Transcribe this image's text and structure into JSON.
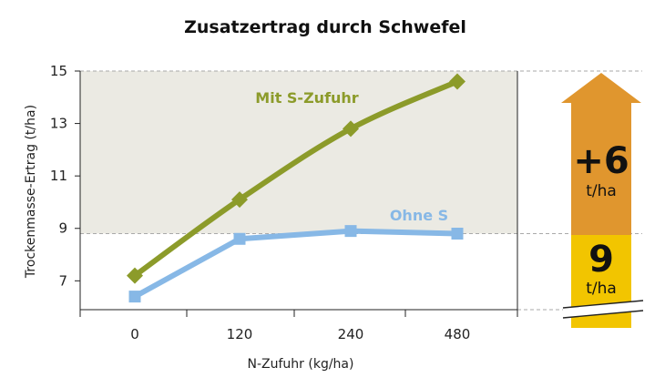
{
  "chart_data": {
    "type": "line",
    "title": "Zusatzertrag durch Schwefel",
    "xlabel": "N-Zufuhr (kg/ha)",
    "ylabel": "Trockenmasse-Ertrag (t/ha)",
    "categories": [
      "0",
      "120",
      "240",
      "480"
    ],
    "y_ticks": [
      7,
      9,
      11,
      13,
      15
    ],
    "ylim": [
      5.9,
      15
    ],
    "grid": false,
    "series": [
      {
        "name": "Mit S-Zufuhr",
        "values": [
          7.2,
          10.1,
          12.8,
          14.6
        ],
        "color": "#8c9b2a",
        "marker": "diamond"
      },
      {
        "name": "Ohne S",
        "values": [
          6.4,
          8.6,
          8.9,
          8.8
        ],
        "color": "#87b8e6",
        "marker": "square"
      }
    ],
    "shaded_band": {
      "from": 8.8,
      "to": 15,
      "color": "#ebeae3"
    },
    "side_arrow": {
      "top_value": "+6",
      "top_unit": "t/ha",
      "top_color": "#e0962e",
      "bottom_value": "9",
      "bottom_unit": "t/ha",
      "bottom_color": "#f2c500"
    }
  }
}
